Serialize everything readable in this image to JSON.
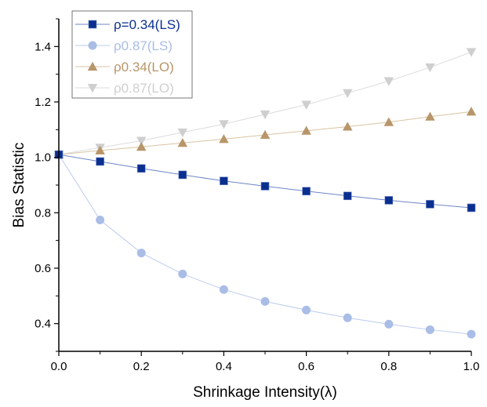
{
  "chart_data": {
    "type": "line",
    "title": "",
    "xlabel": "Shrinkage Intensity(λ)",
    "ylabel": "Bias Statistic",
    "xlim": [
      0.0,
      1.0
    ],
    "ylim": [
      0.3,
      1.5
    ],
    "x_ticks": [
      "0.0",
      "0.2",
      "0.4",
      "0.6",
      "0.8",
      "1.0"
    ],
    "x_tick_values": [
      0.0,
      0.2,
      0.4,
      0.6,
      0.8,
      1.0
    ],
    "x_minor_ticks": [
      0.1,
      0.3,
      0.5,
      0.7,
      0.9
    ],
    "y_ticks": [
      "0.4",
      "0.6",
      "0.8",
      "1.0",
      "1.2",
      "1.4"
    ],
    "y_tick_values": [
      0.4,
      0.6,
      0.8,
      1.0,
      1.2,
      1.4
    ],
    "y_minor_ticks": [
      0.3,
      0.5,
      0.7,
      0.9,
      1.1,
      1.3,
      1.5
    ],
    "grid": false,
    "legend_position": "top-left",
    "x": [
      0.0,
      0.1,
      0.2,
      0.3,
      0.4,
      0.5,
      0.6,
      0.7,
      0.8,
      0.9,
      1.0
    ],
    "series": [
      {
        "name": "ρ=0.34(LS)",
        "marker": "square",
        "color": "#0b2f8f",
        "line_color": "#6f86c8",
        "values": [
          1.01,
          0.985,
          0.96,
          0.937,
          0.915,
          0.896,
          0.878,
          0.861,
          0.845,
          0.831,
          0.818
        ]
      },
      {
        "name": "ρ0.87(LS)",
        "marker": "circle",
        "color": "#a9bde6",
        "line_color": "#bccbee",
        "values": [
          1.01,
          0.774,
          0.655,
          0.579,
          0.523,
          0.48,
          0.449,
          0.421,
          0.398,
          0.378,
          0.362
        ]
      },
      {
        "name": "ρ0.34(LO)",
        "marker": "triangle-up",
        "color": "#b8966a",
        "line_color": "#d9c3a3",
        "values": [
          1.01,
          1.025,
          1.038,
          1.052,
          1.066,
          1.081,
          1.096,
          1.111,
          1.127,
          1.147,
          1.165
        ]
      },
      {
        "name": "ρ0.87(LO)",
        "marker": "triangle-down",
        "color": "#cfcfcf",
        "line_color": "#dcdcdc",
        "values": [
          1.01,
          1.035,
          1.06,
          1.09,
          1.12,
          1.155,
          1.19,
          1.232,
          1.275,
          1.325,
          1.38
        ]
      }
    ]
  }
}
